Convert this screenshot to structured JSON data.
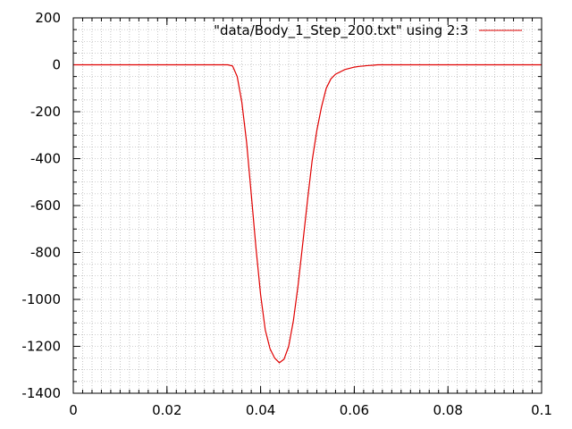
{
  "chart_data": {
    "type": "line",
    "title": "",
    "xlabel": "",
    "ylabel": "",
    "xlim": [
      0,
      0.1
    ],
    "ylim": [
      -1400,
      200
    ],
    "xticks": [
      0,
      0.02,
      0.04,
      0.06,
      0.08,
      0.1
    ],
    "xtick_labels": [
      "0",
      "0.02",
      "0.04",
      "0.06",
      "0.08",
      "0.1"
    ],
    "yticks": [
      -1400,
      -1200,
      -1000,
      -800,
      -600,
      -400,
      -200,
      0,
      200
    ],
    "ytick_labels": [
      "-1400",
      "-1200",
      "-1000",
      "-800",
      "-600",
      "-400",
      "-200",
      "0",
      "200"
    ],
    "x_minor_step": 0.002,
    "y_minor_step": 50,
    "grid": true,
    "grid_style": "dotted",
    "legend_position": "top-right",
    "series": [
      {
        "name": "\"data/Body_1_Step_200.txt\" using 2:3",
        "color": "#e00000",
        "x": [
          0,
          0.01,
          0.02,
          0.03,
          0.033,
          0.034,
          0.035,
          0.036,
          0.037,
          0.038,
          0.039,
          0.04,
          0.041,
          0.042,
          0.043,
          0.044,
          0.045,
          0.046,
          0.047,
          0.048,
          0.049,
          0.05,
          0.051,
          0.052,
          0.053,
          0.054,
          0.055,
          0.056,
          0.057,
          0.058,
          0.059,
          0.06,
          0.061,
          0.062,
          0.063,
          0.064,
          0.065,
          0.07,
          0.08,
          0.09,
          0.1
        ],
        "y": [
          0,
          0,
          0,
          0,
          0,
          -5,
          -50,
          -160,
          -330,
          -550,
          -780,
          -980,
          -1130,
          -1210,
          -1250,
          -1270,
          -1255,
          -1200,
          -1090,
          -940,
          -760,
          -580,
          -410,
          -280,
          -180,
          -100,
          -60,
          -40,
          -30,
          -20,
          -15,
          -10,
          -7,
          -5,
          -3,
          -2,
          0,
          0,
          0,
          0,
          0
        ]
      }
    ]
  }
}
